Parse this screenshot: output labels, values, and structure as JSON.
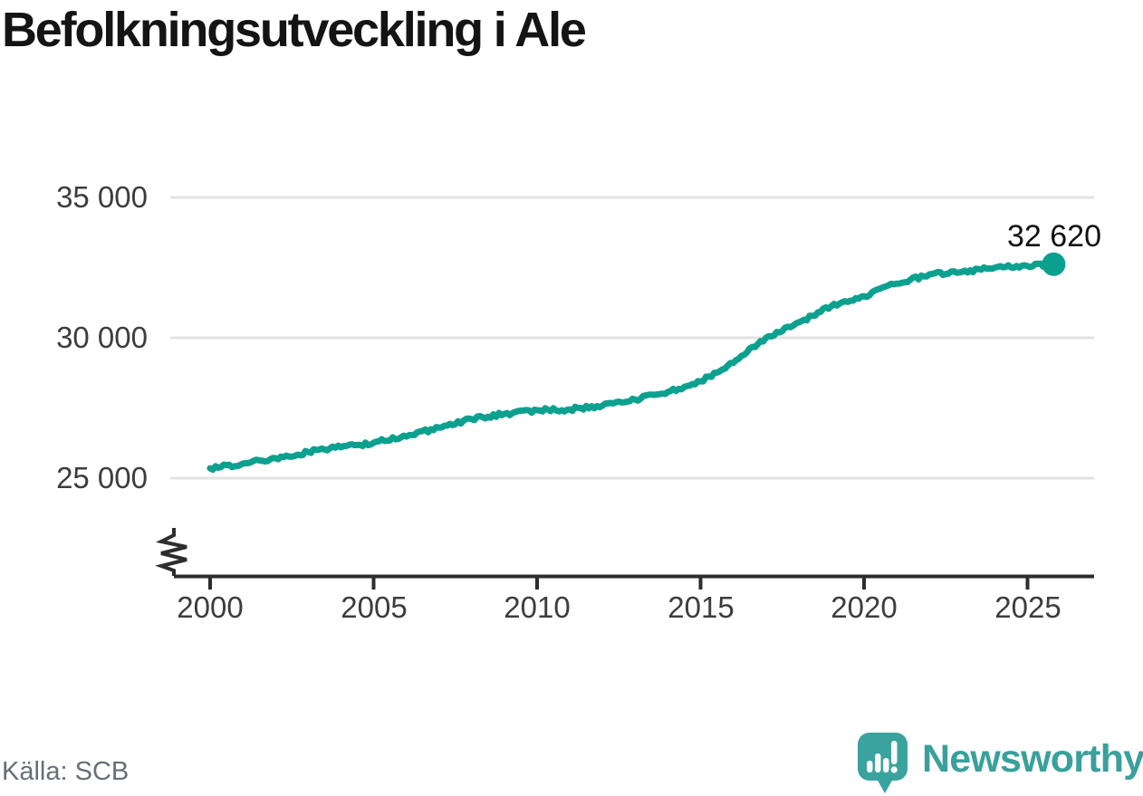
{
  "title": "Befolkningsutveckling i Ale",
  "source": "Källa: SCB",
  "brand": {
    "name": "Newsworthy"
  },
  "colors": {
    "line": "#0CA18F",
    "grid": "#E3E3E3",
    "axis": "#2D2D2D",
    "tick_text": "#3D3D3D",
    "title_text": "#141414",
    "source_text": "#6A6E75",
    "brand_teal": "#3AA09B"
  },
  "chart_data": {
    "type": "line",
    "title": "Befolkningsutveckling i Ale",
    "x": [
      2000,
      2001,
      2002,
      2003,
      2004,
      2005,
      2006,
      2007,
      2008,
      2009,
      2010,
      2011,
      2012,
      2013,
      2014,
      2015,
      2016,
      2017,
      2018,
      2019,
      2020,
      2021,
      2022,
      2023,
      2024,
      2025,
      2025.8
    ],
    "series": [
      {
        "values": [
          25350,
          25520,
          25710,
          25930,
          26100,
          26260,
          26480,
          26800,
          27100,
          27290,
          27420,
          27450,
          27580,
          27800,
          28070,
          28450,
          29100,
          30000,
          30550,
          31130,
          31480,
          31930,
          32260,
          32350,
          32500,
          32550,
          32620
        ]
      }
    ],
    "xlabel": "",
    "ylabel": "",
    "ylim": [
      24600,
      35500
    ],
    "xlim": [
      1999.5,
      2027
    ],
    "ytick_values": [
      25000,
      30000,
      35000
    ],
    "ytick_labels": [
      "25 000",
      "30 000",
      "35 000"
    ],
    "xtick_values": [
      2000,
      2005,
      2010,
      2015,
      2020,
      2025
    ],
    "xtick_labels": [
      "2000",
      "2005",
      "2010",
      "2015",
      "2020",
      "2025"
    ],
    "grid": "horizontal-only",
    "legend": "none",
    "axis_break": true,
    "line_color": "#0CA18F",
    "end_point": {
      "x": 2025.8,
      "value": 32620,
      "label": "32 620"
    },
    "source": "Källa: SCB"
  }
}
